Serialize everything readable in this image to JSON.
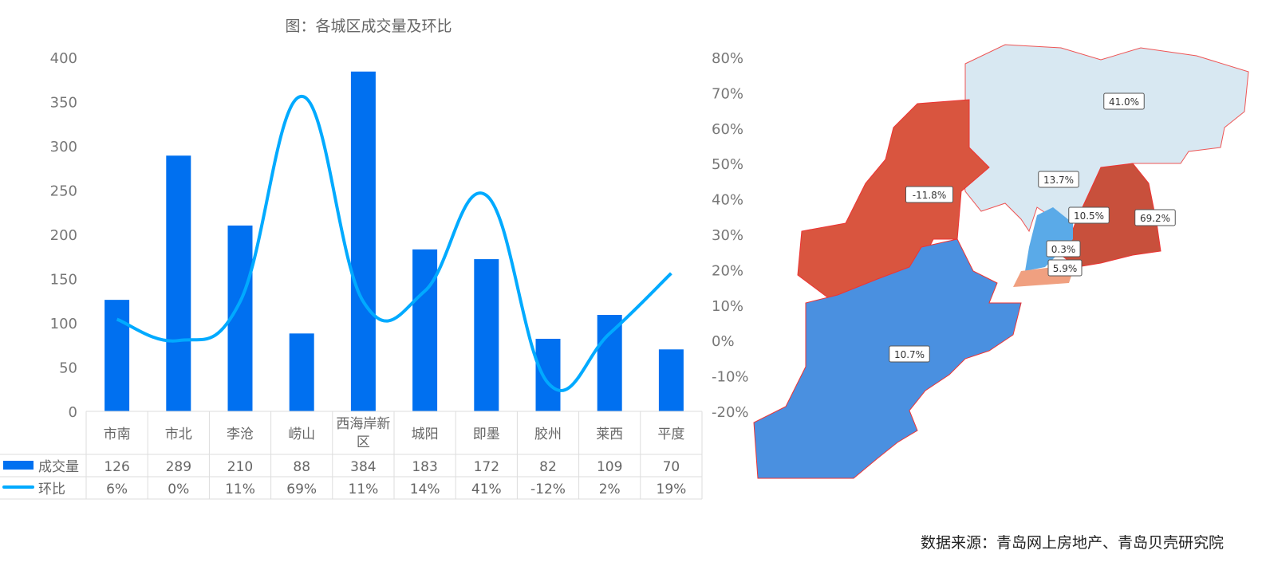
{
  "chart_data": {
    "type": "bar+line",
    "title": "图：各城区成交量及环比",
    "categories": [
      "市南",
      "市北",
      "李沧",
      "崂山",
      "西海岸新区",
      "城阳",
      "即墨",
      "胶州",
      "莱西",
      "平度"
    ],
    "series": [
      {
        "name": "成交量",
        "type": "bar",
        "axis": "left",
        "color": "#0070F0",
        "values": [
          126,
          289,
          210,
          88,
          384,
          183,
          172,
          82,
          109,
          70
        ]
      },
      {
        "name": "环比",
        "type": "line",
        "axis": "right",
        "color": "#00AAFF",
        "values": [
          6,
          0,
          11,
          69,
          11,
          14,
          41,
          -12,
          2,
          19
        ],
        "labels": [
          "6%",
          "0%",
          "11%",
          "69%",
          "11%",
          "14%",
          "41%",
          "-12%",
          "2%",
          "19%"
        ]
      }
    ],
    "left_axis": {
      "range": [
        0,
        400
      ],
      "ticks": [
        "0",
        "50",
        "100",
        "150",
        "200",
        "250",
        "300",
        "350",
        "400"
      ]
    },
    "right_axis": {
      "range": [
        -20,
        80
      ],
      "ticks": [
        "-20%",
        "-10%",
        "0%",
        "10%",
        "20%",
        "30%",
        "40%",
        "50%",
        "60%",
        "70%",
        "80%"
      ]
    },
    "legend": "data-table"
  },
  "map": {
    "labels": [
      "41.0%",
      "13.7%",
      "-11.8%",
      "10.5%",
      "69.2%",
      "0.3%",
      "5.9%",
      "10.7%"
    ],
    "colors": {
      "up_strong": "#D9553F",
      "down": "#4A90E0",
      "light": "#D8E8F2"
    }
  },
  "source": "数据来源：青岛网上房地产、青岛贝壳研究院"
}
